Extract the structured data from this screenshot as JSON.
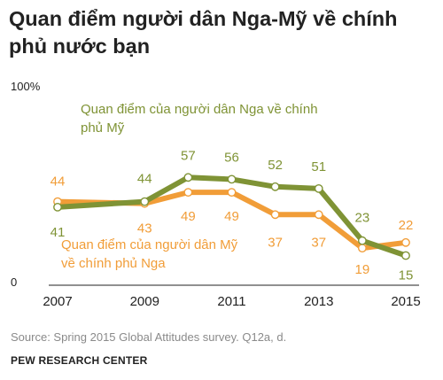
{
  "title": "Quan điểm người dân Nga-Mỹ về chính phủ nước bạn",
  "source": "Source: Spring 2015 Global Attitudes survey. Q12a, d.",
  "credit": "PEW RESEARCH CENTER",
  "chart_data": {
    "type": "line",
    "title": "Quan điểm người dân Nga-Mỹ về chính phủ nước bạn",
    "ylim": [
      0,
      100
    ],
    "xlim": [
      2007,
      2015
    ],
    "x_ticks": [
      "2007",
      "2009",
      "2011",
      "2013",
      "2015"
    ],
    "y_ticks": [
      "100%",
      "0"
    ],
    "grid": false,
    "legend": "inline labels",
    "series": [
      {
        "name": "Quan điểm của người dân Nga về chính phủ Mỹ",
        "color": "#7f9335",
        "x": [
          2007,
          2009,
          2010,
          2011,
          2012,
          2013,
          2014,
          2015
        ],
        "values": [
          41,
          44,
          57,
          56,
          52,
          51,
          23,
          15
        ],
        "labels": [
          "41",
          "44",
          "57",
          "56",
          "52",
          "51",
          "23",
          "15"
        ]
      },
      {
        "name": "Quan điểm của người dân Mỹ về chính phủ Nga",
        "color": "#f19d38",
        "x": [
          2007,
          2009,
          2010,
          2011,
          2012,
          2013,
          2014,
          2015
        ],
        "values": [
          44,
          43,
          49,
          49,
          37,
          37,
          19,
          22
        ],
        "labels": [
          "44",
          "43",
          "49",
          "49",
          "37",
          "37",
          "19",
          "22"
        ]
      }
    ]
  }
}
